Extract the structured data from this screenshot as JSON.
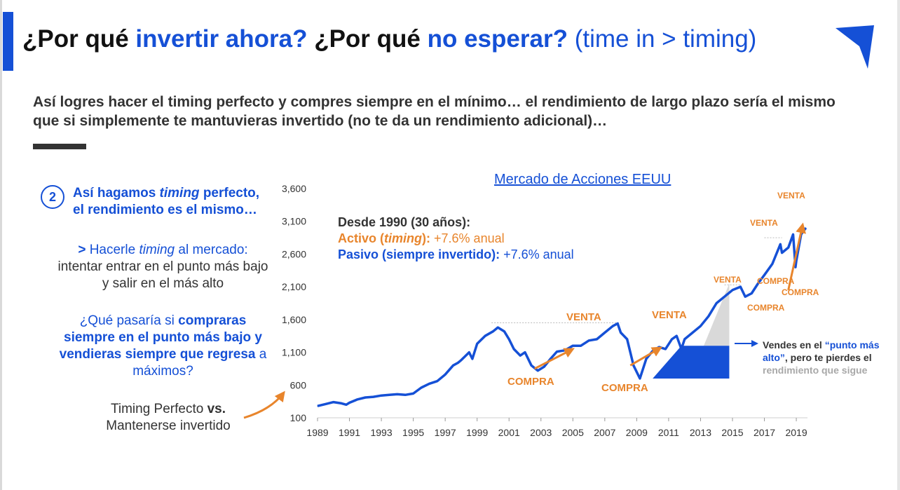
{
  "header": {
    "title_part1": "¿Por qué ",
    "title_part2": "invertir ahora?",
    "title_part3": " ¿Por qué ",
    "title_part4": "no esperar?",
    "title_part5": " (time in > timing)"
  },
  "subtitle": "Así logres hacer el timing perfecto y compres siempre en el mínimo… el rendimiento de largo plazo sería el mismo que si simplemente te mantuvieras invertido (no te da un rendimiento adicional)…",
  "left_panel": {
    "number": "2",
    "heading_a": "Así hagamos ",
    "heading_b": "timing",
    "heading_c": " perfecto, el rendimiento es el mismo…",
    "b1_arrow": "> ",
    "b1_a": "Hacerle ",
    "b1_b": "timing",
    "b1_c": " al mercado:",
    "b1_d": "intentar entrar en el punto más bajo y salir en el más alto",
    "b2_a": "¿Qué pasaría si ",
    "b2_b": "compraras siempre en el punto más bajo y vendieras siempre que regresa",
    "b2_c": " a máximos?",
    "b3_a": "Timing Perfecto ",
    "b3_b": "vs.",
    "b3_c": "Mantenerse invertido"
  },
  "annotations": {
    "desde": "Desde 1990 (30 años):",
    "activo_a": "Activo (",
    "activo_b": "timing",
    "activo_c": "):",
    "activo_val": " +7.6% anual",
    "pasivo_a": "Pasivo (siempre invertido):",
    "pasivo_val": " +7.6% anual",
    "venta": "VENTA",
    "compra": "COMPRA",
    "note_a": "Vendes en el ",
    "note_b": "“punto más alto”",
    "note_c": ", pero te pierdes el ",
    "note_d": "rendimiento que sigue"
  },
  "colors": {
    "blue": "#1550d6",
    "orange": "#e8852c",
    "dark": "#333333",
    "gray": "#a8a8a8",
    "light_gray": "#d9d9d9"
  },
  "chart_data": {
    "type": "line",
    "title": "Mercado de Acciones EEUU",
    "xlabel": "",
    "ylabel": "",
    "xlim": [
      1989,
      2019.7
    ],
    "ylim": [
      100,
      3600
    ],
    "y_ticks": [
      100,
      600,
      1100,
      1600,
      2100,
      2600,
      3100,
      3600
    ],
    "y_tick_labels": [
      "100",
      "600",
      "1,100",
      "1,600",
      "2,100",
      "2,600",
      "3,100",
      "3,600"
    ],
    "x_ticks": [
      1989,
      1991,
      1993,
      1995,
      1997,
      1999,
      2001,
      2003,
      2005,
      2007,
      2009,
      2011,
      2013,
      2015,
      2017,
      2019
    ],
    "x_tick_labels": [
      "1989",
      "1991",
      "1993",
      "1995",
      "1997",
      "1999",
      "2001",
      "2003",
      "2005",
      "2007",
      "2009",
      "2011",
      "2013",
      "2015",
      "2017",
      "2019"
    ],
    "grid": false,
    "series": [
      {
        "x": [
          1989.0,
          1989.5,
          1990.0,
          1990.5,
          1990.8,
          1991.0,
          1991.5,
          1992.0,
          1992.5,
          1993.0,
          1993.5,
          1994.0,
          1994.5,
          1995.0,
          1995.5,
          1996.0,
          1996.5,
          1997.0,
          1997.5,
          1997.8,
          1998.0,
          1998.5,
          1998.7,
          1999.0,
          1999.5,
          2000.0,
          2000.3,
          2000.7,
          2001.0,
          2001.3,
          2001.7,
          2002.0,
          2002.4,
          2002.8,
          2003.2,
          2003.6,
          2004.0,
          2004.5,
          2005.0,
          2005.5,
          2006.0,
          2006.5,
          2007.0,
          2007.5,
          2007.8,
          2008.0,
          2008.4,
          2008.8,
          2009.2,
          2009.6,
          2010.0,
          2010.4,
          2010.8,
          2011.2,
          2011.5,
          2011.8,
          2012.0,
          2012.5,
          2013.0,
          2013.5,
          2014.0,
          2014.5,
          2015.0,
          2015.5,
          2015.8,
          2016.2,
          2016.6,
          2017.0,
          2017.5,
          2018.0,
          2018.1,
          2018.5,
          2018.8,
          2018.95,
          2019.0,
          2019.3,
          2019.6
        ],
        "y": [
          280,
          310,
          340,
          320,
          300,
          330,
          380,
          410,
          420,
          440,
          450,
          460,
          450,
          470,
          560,
          620,
          660,
          760,
          900,
          940,
          980,
          1100,
          1000,
          1230,
          1350,
          1420,
          1480,
          1420,
          1300,
          1150,
          1050,
          1100,
          900,
          820,
          880,
          1000,
          1110,
          1130,
          1200,
          1200,
          1280,
          1300,
          1400,
          1500,
          1540,
          1400,
          1300,
          900,
          700,
          1000,
          1120,
          1180,
          1150,
          1300,
          1350,
          1150,
          1300,
          1400,
          1500,
          1650,
          1850,
          1950,
          2050,
          2100,
          1950,
          2000,
          2150,
          2280,
          2450,
          2750,
          2620,
          2700,
          2900,
          2400,
          2500,
          2900,
          3000
        ]
      }
    ]
  }
}
